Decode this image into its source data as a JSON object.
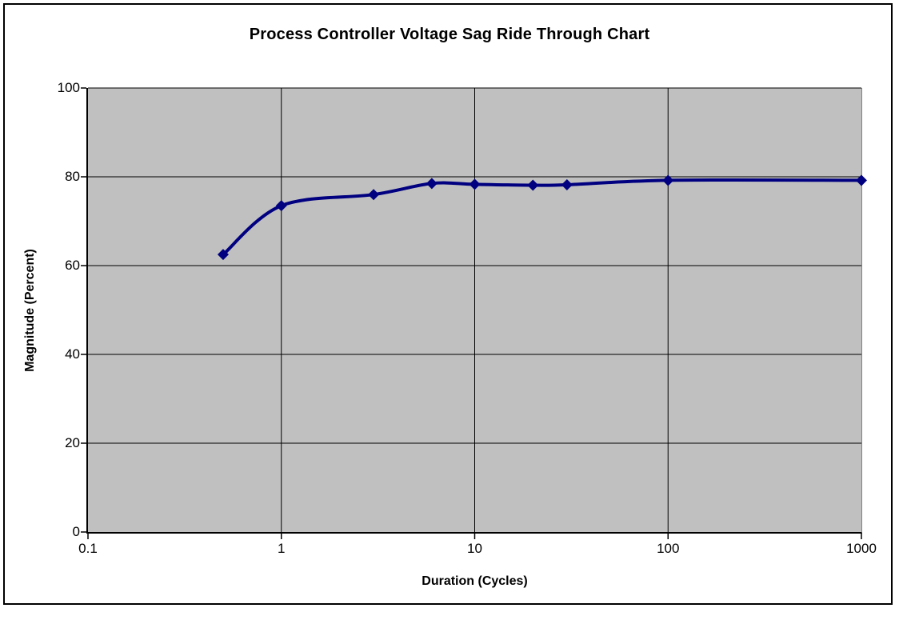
{
  "chart_data": {
    "type": "line",
    "title": "Process Controller Voltage Sag Ride Through Chart",
    "xlabel": "Duration (Cycles)",
    "ylabel": "Magnitude (Percent)",
    "x_scale": "log",
    "xlim": [
      0.1,
      1000
    ],
    "ylim": [
      0,
      100
    ],
    "x_ticks": [
      0.1,
      1,
      10,
      100,
      1000
    ],
    "x_tick_labels": [
      "0.1",
      "1",
      "10",
      "100",
      "1000"
    ],
    "y_ticks": [
      0,
      20,
      40,
      60,
      80,
      100
    ],
    "y_tick_labels": [
      "0",
      "20",
      "40",
      "60",
      "80",
      "100"
    ],
    "grid": true,
    "legend_position": "none",
    "plot_background_color": "#c0c0c0",
    "gridline_color": "#000000",
    "series": [
      {
        "name": "Voltage Sag Ride Through",
        "marker": "diamond",
        "color": "#000080",
        "smoothed": true,
        "x": [
          0.5,
          1,
          3,
          6,
          10,
          20,
          30,
          100,
          1000
        ],
        "y": [
          62.5,
          73.5,
          76,
          78.5,
          78.3,
          78.1,
          78.2,
          79.2,
          79.2
        ]
      }
    ]
  }
}
